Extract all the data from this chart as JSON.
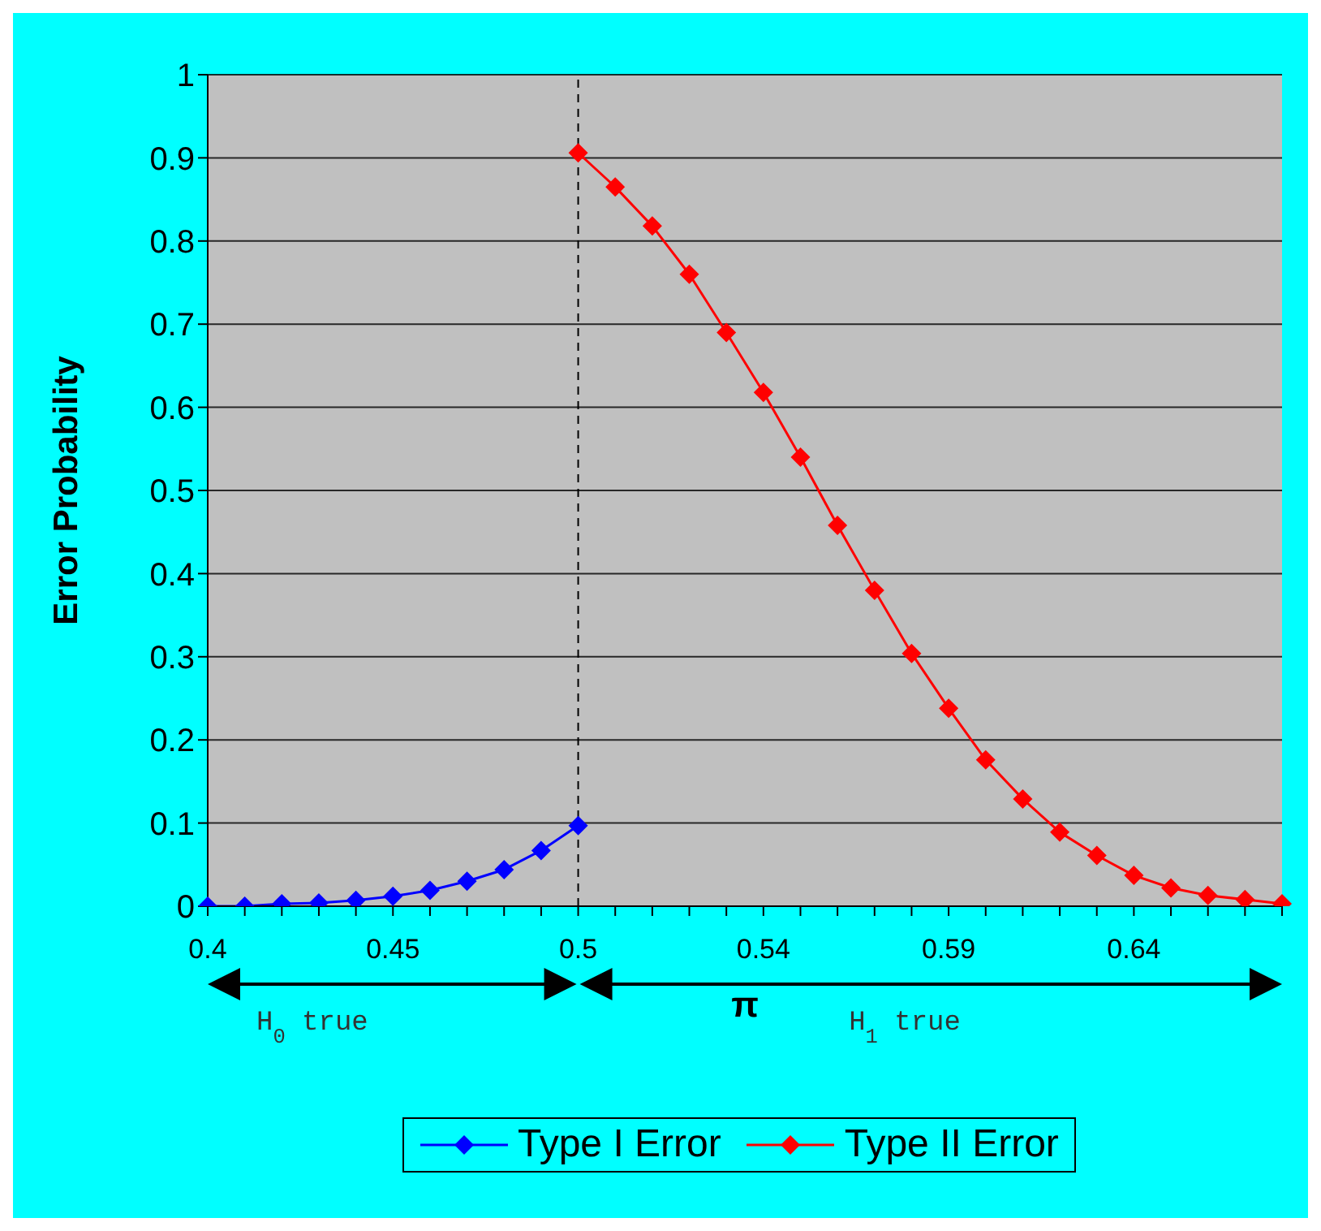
{
  "chart_data": {
    "type": "line",
    "ylabel": "Error Probability",
    "xlabel": "π",
    "categories": [
      "0.4",
      null,
      null,
      null,
      null,
      "0.45",
      null,
      null,
      null,
      null,
      "0.5",
      null,
      null,
      null,
      null,
      "0.54",
      null,
      null,
      null,
      null,
      "0.59",
      null,
      null,
      null,
      null,
      "0.64",
      null,
      null,
      null,
      null
    ],
    "series": [
      {
        "name": "Type I Error",
        "color": "#0000ff",
        "values": [
          0,
          0,
          0.003,
          0.004,
          0.007,
          0.012,
          0.019,
          0.03,
          0.044,
          0.067,
          0.097,
          null,
          null,
          null,
          null,
          null,
          null,
          null,
          null,
          null,
          null,
          null,
          null,
          null,
          null,
          null,
          null,
          null,
          null,
          null
        ]
      },
      {
        "name": "Type II Error",
        "color": "#ff0000",
        "values": [
          null,
          null,
          null,
          null,
          null,
          null,
          null,
          null,
          null,
          null,
          0.906,
          0.865,
          0.818,
          0.76,
          0.69,
          0.618,
          0.54,
          0.458,
          0.38,
          0.304,
          0.238,
          0.176,
          0.129,
          0.089,
          0.061,
          0.037,
          0.022,
          0.013,
          0.008,
          0.003
        ]
      }
    ],
    "ylim": [
      0,
      1
    ],
    "yticks": [
      0,
      0.1,
      0.2,
      0.3,
      0.4,
      0.5,
      0.6,
      0.7,
      0.8,
      0.9,
      1
    ],
    "grid": "y",
    "legend": "bottom",
    "marker": "diamond",
    "line_style": "solid",
    "ref_lines": [
      {
        "axis": "x",
        "value": "0.5",
        "line_style": "dashed",
        "color": "#000000"
      }
    ],
    "annotations": [
      "H$_{0}$ true",
      "H$_{1}$ true"
    ]
  }
}
